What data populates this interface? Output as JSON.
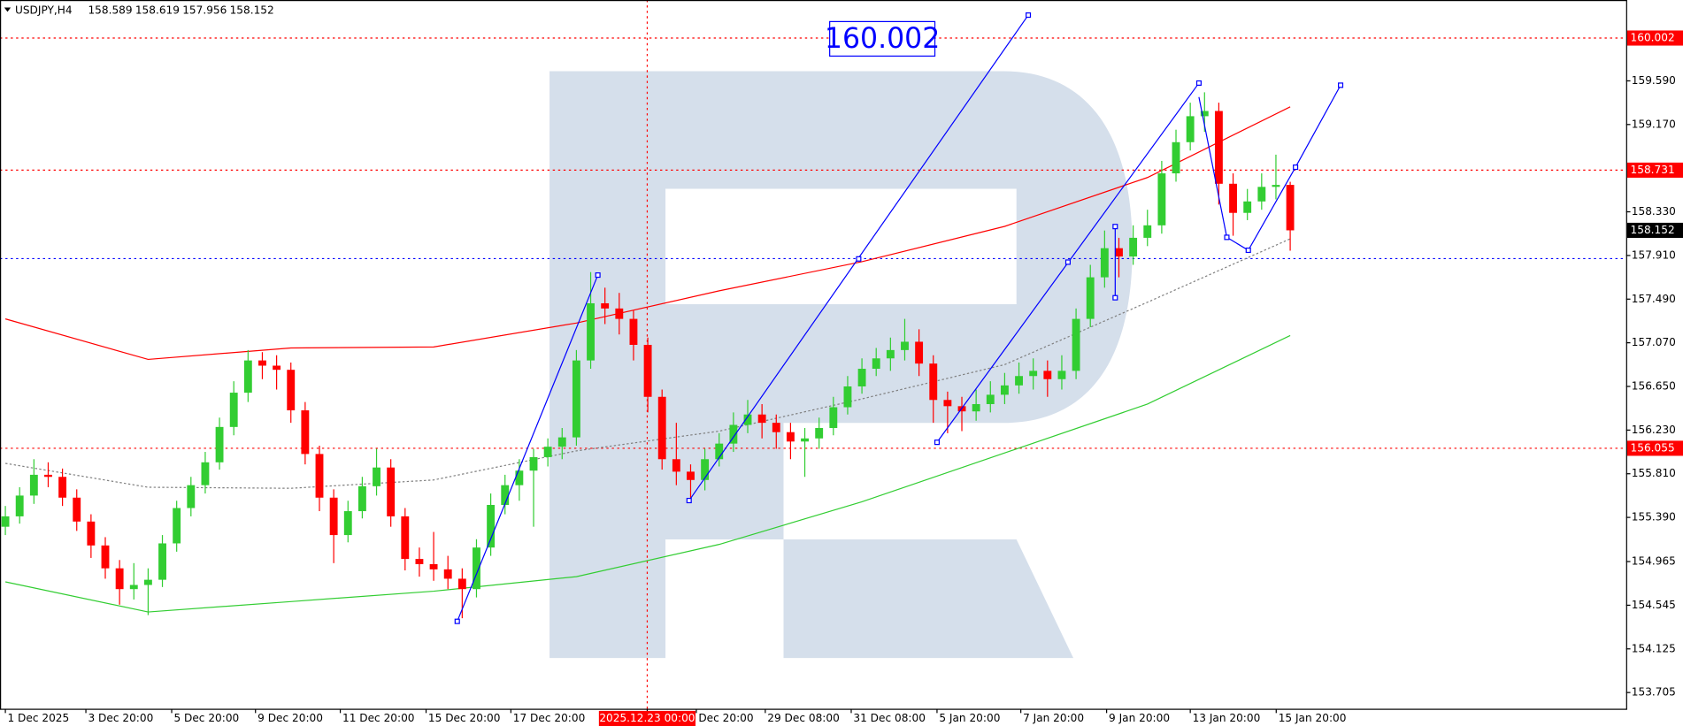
{
  "chart_data": {
    "type": "candlestick",
    "title": "USDJPY,H4",
    "header_ohlc": [
      158.589,
      158.619,
      157.956,
      158.152
    ],
    "open": [
      155.3,
      155.4,
      155.6,
      155.8,
      155.78,
      155.58,
      155.35,
      155.12,
      154.9,
      154.7,
      154.74,
      154.79,
      155.14,
      155.48,
      155.7,
      155.92,
      156.26,
      156.59,
      156.9,
      156.85,
      156.81,
      156.42,
      156.0,
      155.58,
      155.22,
      155.45,
      155.69,
      155.87,
      155.4,
      154.99,
      154.94,
      154.89,
      154.8,
      154.7,
      155.1,
      155.51,
      155.7,
      155.84,
      155.97,
      156.07,
      156.16,
      156.9,
      157.45,
      157.4,
      157.3,
      157.05,
      156.55,
      155.95,
      155.83,
      155.75,
      155.95,
      156.1,
      156.28,
      156.38,
      156.3,
      156.21,
      156.12,
      156.15,
      156.25,
      156.45,
      156.65,
      156.82,
      156.92,
      157.0,
      157.08,
      156.87,
      156.52,
      156.46,
      156.41,
      156.48,
      156.57,
      156.66,
      156.75,
      156.8,
      156.72,
      156.8,
      157.3,
      157.7,
      157.98,
      157.9,
      158.08,
      158.2,
      158.7,
      159.0,
      159.25,
      159.3,
      158.6,
      158.32,
      158.43,
      158.57,
      158.589
    ],
    "high": [
      155.5,
      155.68,
      155.95,
      155.92,
      155.86,
      155.66,
      155.42,
      155.2,
      154.98,
      154.95,
      154.9,
      155.22,
      155.55,
      155.78,
      156.02,
      156.35,
      156.7,
      157.0,
      156.98,
      156.95,
      156.88,
      156.5,
      156.08,
      155.66,
      155.55,
      155.78,
      156.05,
      155.95,
      155.48,
      155.1,
      155.25,
      155.02,
      154.9,
      155.18,
      155.62,
      155.8,
      155.95,
      156.05,
      156.15,
      156.25,
      157.0,
      157.75,
      157.6,
      157.55,
      157.38,
      157.12,
      156.62,
      156.3,
      155.9,
      156.05,
      156.2,
      156.4,
      156.52,
      156.48,
      156.38,
      156.3,
      156.25,
      156.35,
      156.55,
      156.75,
      156.92,
      157.02,
      157.12,
      157.3,
      157.2,
      156.95,
      156.6,
      156.55,
      156.62,
      156.7,
      156.78,
      156.88,
      156.92,
      156.9,
      156.95,
      157.4,
      157.82,
      158.15,
      158.08,
      158.2,
      158.35,
      158.82,
      159.12,
      159.38,
      159.48,
      159.38,
      158.7,
      158.55,
      158.7,
      158.88,
      158.619
    ],
    "low": [
      155.22,
      155.33,
      155.52,
      155.68,
      155.5,
      155.26,
      155.0,
      154.8,
      154.55,
      154.6,
      154.45,
      154.72,
      155.06,
      155.4,
      155.62,
      155.85,
      156.18,
      156.5,
      156.72,
      156.62,
      156.3,
      155.9,
      155.45,
      154.95,
      155.15,
      155.38,
      155.6,
      155.3,
      154.88,
      154.82,
      154.78,
      154.7,
      154.42,
      154.62,
      155.02,
      155.42,
      155.55,
      155.3,
      155.88,
      155.95,
      156.08,
      156.82,
      157.25,
      157.15,
      156.9,
      156.4,
      155.85,
      155.7,
      155.55,
      155.65,
      155.88,
      156.02,
      156.2,
      156.15,
      156.05,
      155.95,
      155.78,
      156.05,
      156.18,
      156.38,
      156.58,
      156.75,
      156.8,
      156.9,
      156.75,
      156.3,
      156.2,
      156.22,
      156.32,
      156.4,
      156.48,
      156.58,
      156.62,
      156.55,
      156.62,
      156.72,
      157.22,
      157.6,
      157.7,
      157.82,
      158.0,
      158.12,
      158.62,
      158.92,
      159.1,
      158.4,
      158.1,
      158.25,
      158.35,
      158.45,
      157.956
    ],
    "close": [
      155.4,
      155.6,
      155.8,
      155.78,
      155.58,
      155.35,
      155.12,
      154.9,
      154.7,
      154.74,
      154.79,
      155.14,
      155.48,
      155.7,
      155.92,
      156.26,
      156.59,
      156.9,
      156.85,
      156.81,
      156.42,
      156.0,
      155.58,
      155.22,
      155.45,
      155.69,
      155.87,
      155.4,
      154.99,
      154.94,
      154.89,
      154.8,
      154.7,
      155.1,
      155.51,
      155.7,
      155.84,
      155.97,
      156.07,
      156.16,
      156.9,
      157.45,
      157.4,
      157.3,
      157.05,
      156.55,
      155.95,
      155.83,
      155.75,
      155.95,
      156.1,
      156.28,
      156.38,
      156.3,
      156.21,
      156.12,
      156.15,
      156.25,
      156.45,
      156.65,
      156.82,
      156.92,
      157.0,
      157.08,
      156.87,
      156.52,
      156.46,
      156.41,
      156.48,
      156.57,
      156.66,
      156.75,
      156.8,
      156.72,
      156.8,
      157.3,
      157.7,
      157.98,
      157.9,
      158.08,
      158.2,
      158.7,
      159.0,
      159.25,
      159.3,
      158.6,
      158.32,
      158.43,
      158.57,
      158.589,
      158.152
    ],
    "up_color": "#32cd32",
    "down_color": "#ff0000",
    "overlays": [
      {
        "color": "#ff0000",
        "dash": false,
        "x": [
          0,
          10,
          20,
          30,
          40,
          50,
          60,
          70,
          80,
          90
        ],
        "values": [
          157.3,
          156.91,
          157.02,
          157.03,
          157.26,
          157.57,
          157.85,
          158.19,
          158.66,
          159.34
        ]
      },
      {
        "color": "#32cd32",
        "dash": false,
        "x": [
          0,
          10,
          20,
          30,
          40,
          50,
          60,
          70,
          80,
          90
        ],
        "values": [
          154.77,
          154.48,
          154.58,
          154.68,
          154.82,
          155.13,
          155.54,
          156.01,
          156.48,
          157.14
        ]
      },
      {
        "color": "#808080",
        "dash": true,
        "x": [
          0,
          10,
          20,
          30,
          40,
          50,
          60,
          70,
          80,
          90
        ],
        "values": [
          155.91,
          155.68,
          155.67,
          155.75,
          156.03,
          156.22,
          156.53,
          156.86,
          157.46,
          158.07
        ]
      }
    ],
    "levels": [
      {
        "value": 160.002,
        "color": "#ff0000"
      },
      {
        "value": 158.731,
        "color": "#ff0000"
      },
      {
        "value": 156.055,
        "color": "#ff0000"
      },
      {
        "value": 157.88,
        "color": "#0000ff"
      }
    ],
    "xlim": [
      -0.376,
      113.53
    ],
    "ylim": [
      153.549,
      160.368
    ],
    "yticks": [
      {
        "value": 159.59,
        "label": "159.590"
      },
      {
        "value": 159.17,
        "label": "159.170"
      },
      {
        "value": 158.33,
        "label": "158.330"
      },
      {
        "value": 157.91,
        "label": "157.910"
      },
      {
        "value": 157.49,
        "label": "157.490"
      },
      {
        "value": 157.07,
        "label": "157.070"
      },
      {
        "value": 156.65,
        "label": "156.650"
      },
      {
        "value": 156.23,
        "label": "156.230"
      },
      {
        "value": 155.81,
        "label": "155.810"
      },
      {
        "value": 155.39,
        "label": "155.390"
      },
      154.965,
      154.545,
      154.125,
      153.705
    ],
    "xticks": [
      {
        "value": 0,
        "label": "1 Dec 2025"
      },
      {
        "value": 5.64,
        "label": "3 Dec 20:00"
      },
      {
        "value": 11.65,
        "label": "5 Dec 20:00"
      },
      {
        "value": 17.52,
        "label": "9 Dec 20:00"
      },
      {
        "value": 23.46,
        "label": "11 Dec 20:00"
      },
      {
        "value": 29.47,
        "label": "15 Dec 20:00"
      },
      {
        "value": 35.41,
        "label": "17 Dec 20:00"
      },
      {
        "value": 44.96,
        "label": "2025.12.23 00:00"
      },
      {
        "value": 48.4,
        "label": "Dec 20:00"
      },
      {
        "value": 53.23,
        "label": "29 Dec 08:00"
      },
      {
        "value": 59.25,
        "label": "31 Dec 08:00"
      },
      {
        "value": 65.26,
        "label": "5 Jan 20:00"
      },
      {
        "value": 71.13,
        "label": "7 Jan 20:00"
      },
      {
        "value": 77.14,
        "label": "9 Jan 20:00"
      },
      {
        "value": 83.0,
        "label": "13 Jan 20:00"
      },
      {
        "value": 89.02,
        "label": "15 Jan 20:00"
      }
    ],
    "crosshair_tick": 7
  }
}
